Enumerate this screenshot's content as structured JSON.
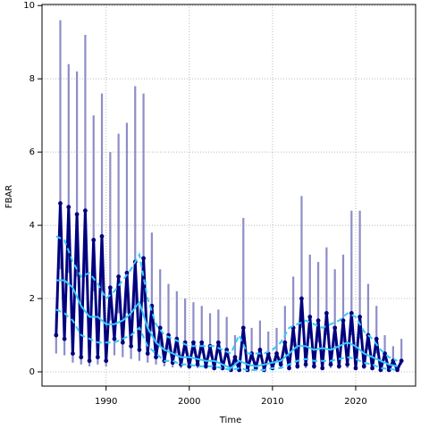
{
  "chart_data": {
    "type": "line",
    "xlabel": "Time",
    "ylabel": "FBAR",
    "xlim": [
      1982.3,
      2027.2
    ],
    "ylim": [
      -0.39,
      10.03
    ],
    "xticks": [
      1990,
      2000,
      2010,
      2020
    ],
    "yticks": [
      0,
      2,
      4,
      6,
      8,
      10
    ],
    "grid": true,
    "x": [
      1984,
      1984.5,
      1985,
      1985.5,
      1986,
      1986.5,
      1987,
      1987.5,
      1988,
      1988.5,
      1989,
      1989.5,
      1990,
      1990.5,
      1991,
      1991.5,
      1992,
      1992.5,
      1993,
      1993.5,
      1994,
      1994.5,
      1995,
      1995.5,
      1996,
      1996.5,
      1997,
      1997.5,
      1998,
      1998.5,
      1999,
      1999.5,
      2000,
      2000.5,
      2001,
      2001.5,
      2002,
      2002.5,
      2003,
      2003.5,
      2004,
      2004.5,
      2005,
      2005.5,
      2006,
      2006.5,
      2007,
      2007.5,
      2008,
      2008.5,
      2009,
      2009.5,
      2010,
      2010.5,
      2011,
      2011.5,
      2012,
      2012.5,
      2013,
      2013.5,
      2014,
      2014.5,
      2015,
      2015.5,
      2016,
      2016.5,
      2017,
      2017.5,
      2018,
      2018.5,
      2019,
      2019.5,
      2020,
      2020.5,
      2021,
      2021.5,
      2022,
      2022.5,
      2023,
      2023.5,
      2024,
      2024.5,
      2025,
      2025.5
    ],
    "series": [
      {
        "color": "#00007f",
        "interval_color": "#8d8dc8",
        "values": [
          1.0,
          4.6,
          0.9,
          4.5,
          0.5,
          4.3,
          0.4,
          4.4,
          0.3,
          3.6,
          0.4,
          3.7,
          0.3,
          2.3,
          0.9,
          2.6,
          0.8,
          2.7,
          0.7,
          3.0,
          0.6,
          3.1,
          0.5,
          1.8,
          0.4,
          1.2,
          0.3,
          1.0,
          0.25,
          0.9,
          0.2,
          0.8,
          0.15,
          0.8,
          0.2,
          0.8,
          0.15,
          0.7,
          0.1,
          0.8,
          0.1,
          0.6,
          0.05,
          0.4,
          0.05,
          1.2,
          0.05,
          0.5,
          0.1,
          0.6,
          0.05,
          0.5,
          0.1,
          0.5,
          0.2,
          0.8,
          0.1,
          1.2,
          0.15,
          2.0,
          0.2,
          1.5,
          0.15,
          1.4,
          0.1,
          1.6,
          0.2,
          1.2,
          0.15,
          1.4,
          0.2,
          1.6,
          0.1,
          1.5,
          0.15,
          1.0,
          0.1,
          0.9,
          0.05,
          0.5,
          0.05,
          0.3,
          0.05,
          0.3
        ],
        "lower": [
          0.5,
          2.8,
          0.45,
          2.7,
          0.25,
          2.6,
          0.2,
          2.6,
          0.15,
          2.2,
          0.2,
          2.2,
          0.15,
          1.4,
          0.45,
          1.6,
          0.4,
          1.6,
          0.35,
          1.8,
          0.3,
          1.9,
          0.25,
          1.1,
          0.2,
          0.7,
          0.15,
          0.6,
          0.12,
          0.5,
          0.1,
          0.5,
          0.08,
          0.5,
          0.1,
          0.5,
          0.08,
          0.4,
          0.05,
          0.5,
          0.05,
          0.4,
          0.02,
          0.2,
          0.02,
          0.7,
          0.02,
          0.3,
          0.05,
          0.4,
          0.02,
          0.3,
          0.05,
          0.3,
          0.1,
          0.5,
          0.05,
          0.7,
          0.08,
          1.2,
          0.1,
          0.9,
          0.08,
          0.8,
          0.05,
          1.0,
          0.1,
          0.7,
          0.08,
          0.8,
          0.1,
          1.0,
          0.05,
          0.9,
          0.08,
          0.6,
          0.05,
          0.5,
          0.02,
          0.3,
          0.02,
          0.2,
          0.02,
          0.2
        ],
        "upper": [
          1.6,
          9.6,
          1.4,
          8.4,
          0.8,
          8.2,
          0.6,
          9.2,
          0.5,
          7.0,
          0.6,
          7.6,
          0.5,
          6.0,
          1.4,
          6.5,
          1.3,
          6.8,
          1.1,
          7.8,
          1.0,
          7.6,
          0.8,
          3.8,
          0.6,
          2.8,
          0.5,
          2.4,
          0.4,
          2.2,
          0.3,
          2.0,
          0.25,
          1.9,
          0.3,
          1.8,
          0.25,
          1.6,
          0.2,
          1.7,
          0.2,
          1.5,
          0.1,
          1.0,
          0.1,
          4.2,
          0.1,
          1.2,
          0.2,
          1.4,
          0.1,
          1.1,
          0.2,
          1.2,
          0.3,
          1.8,
          0.2,
          2.6,
          0.25,
          4.8,
          0.3,
          3.2,
          0.25,
          3.0,
          0.2,
          3.4,
          0.3,
          2.8,
          0.25,
          3.2,
          0.3,
          4.4,
          0.2,
          4.4,
          0.25,
          2.4,
          0.2,
          1.8,
          0.1,
          1.0,
          0.1,
          0.7,
          0.1,
          0.9
        ]
      }
    ],
    "smooth": {
      "color": "#33ccff",
      "x": [
        1984,
        1985,
        1986,
        1987,
        1988,
        1989,
        1990,
        1991,
        1992,
        1993,
        1994,
        1995,
        1996,
        1997,
        1998,
        1999,
        2000,
        2001,
        2002,
        2003,
        2004,
        2005,
        2006,
        2007,
        2008,
        2009,
        2010,
        2011,
        2012,
        2013,
        2014,
        2015,
        2016,
        2017,
        2018,
        2019,
        2020,
        2021,
        2022,
        2023,
        2024,
        2025
      ],
      "values": [
        2.5,
        2.5,
        2.3,
        1.8,
        1.5,
        1.5,
        1.3,
        1.3,
        1.4,
        1.6,
        1.9,
        1.2,
        0.8,
        0.6,
        0.5,
        0.4,
        0.4,
        0.35,
        0.3,
        0.3,
        0.2,
        0.1,
        0.3,
        0.2,
        0.15,
        0.2,
        0.25,
        0.3,
        0.5,
        0.7,
        0.7,
        0.6,
        0.65,
        0.6,
        0.7,
        0.8,
        0.7,
        0.5,
        0.4,
        0.3,
        0.2,
        0.15
      ],
      "upper": [
        3.7,
        3.6,
        3.0,
        2.6,
        2.7,
        2.4,
        2.0,
        2.2,
        2.5,
        2.8,
        3.2,
        2.0,
        1.3,
        1.0,
        0.9,
        0.8,
        0.7,
        0.7,
        0.7,
        0.7,
        0.6,
        0.5,
        1.0,
        0.5,
        0.5,
        0.5,
        0.6,
        0.8,
        1.2,
        1.3,
        1.4,
        1.3,
        1.2,
        1.3,
        1.4,
        1.6,
        1.5,
        1.1,
        0.9,
        0.6,
        0.4,
        0.3
      ],
      "lower": [
        1.7,
        1.6,
        1.4,
        1.0,
        0.9,
        0.8,
        0.8,
        0.8,
        0.9,
        1.0,
        1.2,
        0.7,
        0.5,
        0.3,
        0.3,
        0.2,
        0.2,
        0.15,
        0.15,
        0.15,
        0.1,
        0.05,
        0.1,
        0.05,
        0.05,
        0.05,
        0.1,
        0.1,
        0.2,
        0.3,
        0.35,
        0.3,
        0.3,
        0.3,
        0.35,
        0.4,
        0.35,
        0.25,
        0.2,
        0.1,
        0.08,
        0.05
      ]
    }
  }
}
